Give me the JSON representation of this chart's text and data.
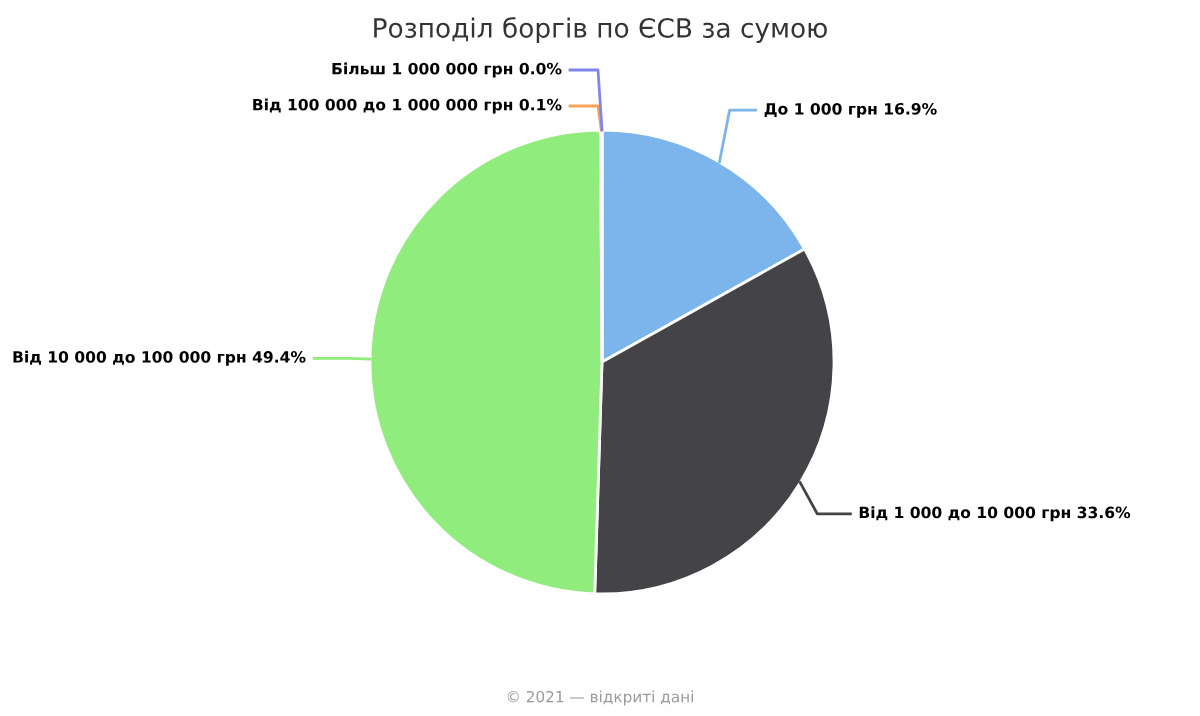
{
  "chart_data": {
    "type": "pie",
    "title": "Розподіл боргів по ЄСВ за сумою",
    "categories": [
      "До 1 000 грн",
      "Від 1 000 до 10 000 грн",
      "Від 10 000 до 100 000 грн",
      "Від 100 000 до 1 000 000 грн",
      "Більш 1 000 000 грн"
    ],
    "values": [
      16.9,
      33.6,
      49.4,
      0.1,
      0.0
    ],
    "value_labels": [
      "16.9%",
      "33.6%",
      "49.4%",
      "0.1%",
      "0.0%"
    ],
    "colors": [
      "#7cb5ec",
      "#434348",
      "#90ed7d",
      "#f7a35c",
      "#8085e9"
    ],
    "annotations": [
      "© 2021 — відкриті дані"
    ]
  }
}
